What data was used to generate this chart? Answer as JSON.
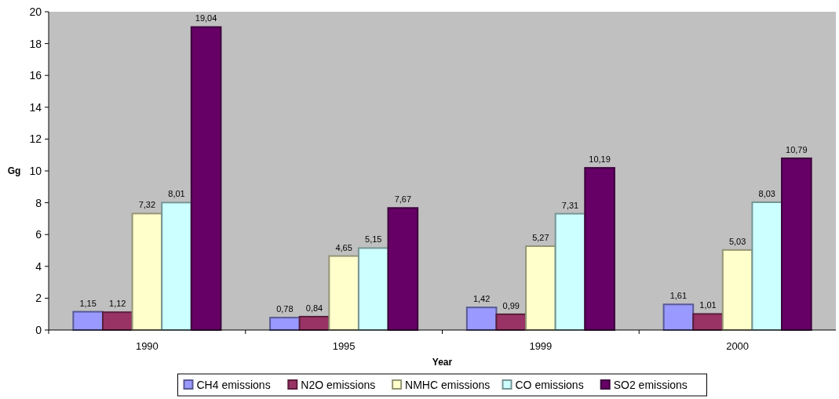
{
  "chart_data": {
    "type": "bar",
    "xlabel": "Year",
    "ylabel": "Gg",
    "categories": [
      "1990",
      "1995",
      "1999",
      "2000"
    ],
    "series": [
      {
        "name": "CH4 emissions",
        "color": "#9999ff",
        "values": [
          1.15,
          0.78,
          1.42,
          1.61
        ],
        "value_labels": [
          "1,15",
          "0,78",
          "1,42",
          "1,61"
        ]
      },
      {
        "name": "N2O emissions",
        "color": "#993366",
        "values": [
          1.12,
          0.84,
          0.99,
          1.01
        ],
        "value_labels": [
          "1,12",
          "0,84",
          "0,99",
          "1,01"
        ]
      },
      {
        "name": "NMHC emissions",
        "color": "#ffffcc",
        "values": [
          7.32,
          4.65,
          5.27,
          5.03
        ],
        "value_labels": [
          "7,32",
          "4,65",
          "5,27",
          "5,03"
        ]
      },
      {
        "name": "CO emissions",
        "color": "#ccffff",
        "values": [
          8.01,
          5.15,
          7.31,
          8.03
        ],
        "value_labels": [
          "8,01",
          "5,15",
          "7,31",
          "8,03"
        ]
      },
      {
        "name": "SO2 emissions",
        "color": "#660066",
        "values": [
          19.04,
          7.67,
          10.19,
          10.79
        ],
        "value_labels": [
          "19,04",
          "7,67",
          "10,19",
          "10,79"
        ]
      }
    ],
    "ylim": [
      0,
      20
    ],
    "yticks": [
      0,
      2,
      4,
      6,
      8,
      10,
      12,
      14,
      16,
      18,
      20
    ],
    "grid": false,
    "legend": "bottom"
  }
}
